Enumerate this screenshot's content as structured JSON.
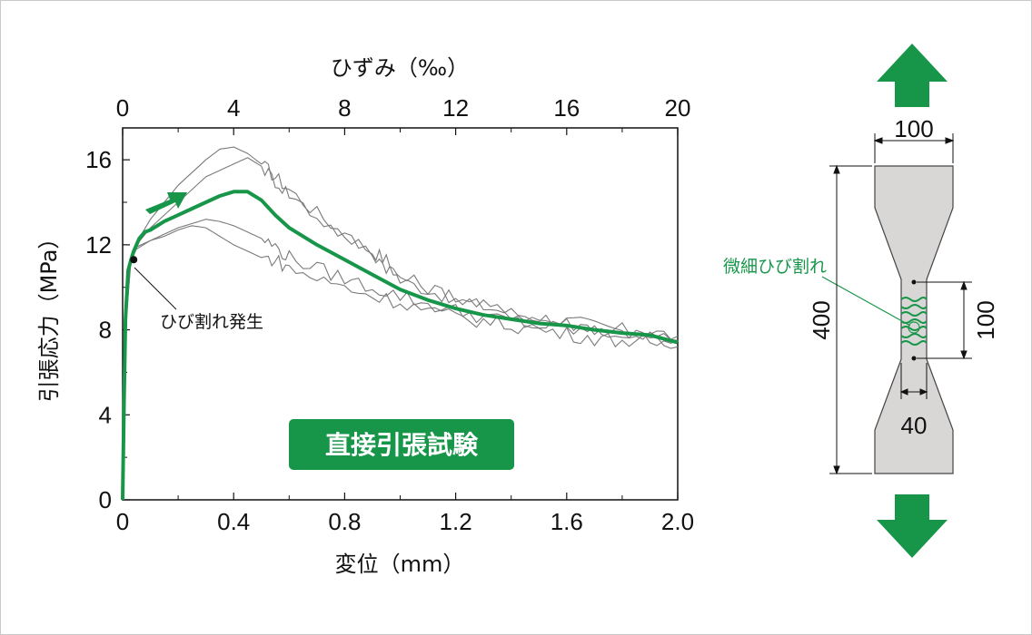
{
  "colors": {
    "main_series": "#17964a",
    "test_series": "#7a7a7a",
    "badge_bg": "#17964a",
    "specimen_fill": "#d9d6d6",
    "arrow": "#17964a"
  },
  "chart_data": {
    "type": "line",
    "title": "",
    "xlabel": "変位（mm）",
    "x2label": "ひずみ（‰）",
    "ylabel": "引張応力（MPa）",
    "xlim": [
      0,
      2.0
    ],
    "x2lim": [
      0,
      20
    ],
    "ylim": [
      0,
      17.5
    ],
    "x_ticks": [
      "0",
      "0.4",
      "0.8",
      "1.2",
      "1.6",
      "2.0"
    ],
    "x2_ticks": [
      "0",
      "4",
      "8",
      "12",
      "16",
      "20"
    ],
    "y_ticks": [
      "0",
      "4",
      "8",
      "12",
      "16"
    ],
    "grid": false,
    "series": [
      {
        "role": "average",
        "x": [
          0,
          0.005,
          0.01,
          0.02,
          0.03,
          0.04,
          0.06,
          0.08,
          0.1,
          0.15,
          0.2,
          0.25,
          0.3,
          0.35,
          0.4,
          0.45,
          0.5,
          0.55,
          0.6,
          0.7,
          0.8,
          0.9,
          1.0,
          1.1,
          1.2,
          1.3,
          1.4,
          1.5,
          1.6,
          1.7,
          1.8,
          1.9,
          2.0
        ],
        "y": [
          0,
          4.5,
          8.5,
          10.8,
          11.3,
          11.7,
          12.3,
          12.6,
          12.7,
          13.1,
          13.4,
          13.7,
          14.0,
          14.3,
          14.5,
          14.5,
          14.1,
          13.4,
          12.8,
          12.0,
          11.3,
          10.6,
          9.9,
          9.4,
          9.0,
          8.7,
          8.5,
          8.3,
          8.2,
          8.0,
          7.85,
          7.75,
          7.4
        ]
      },
      {
        "role": "test",
        "x": [
          0,
          0.01,
          0.03,
          0.05,
          0.1,
          0.2,
          0.3,
          0.35,
          0.4,
          0.45,
          0.5,
          0.55,
          0.6,
          0.7,
          0.8,
          0.9,
          0.95,
          1.0,
          1.1,
          1.2,
          1.3,
          1.4,
          1.5,
          1.6,
          1.7,
          1.8,
          1.9,
          2.0
        ],
        "y": [
          0,
          8.5,
          11.5,
          12.1,
          13.2,
          14.8,
          16.0,
          16.5,
          16.6,
          16.3,
          15.8,
          15.2,
          14.6,
          13.5,
          12.5,
          11.7,
          11.3,
          10.3,
          9.9,
          9.4,
          9.1,
          8.8,
          8.6,
          8.4,
          8.2,
          8.0,
          7.9,
          7.7
        ]
      },
      {
        "role": "test",
        "x": [
          0,
          0.01,
          0.03,
          0.05,
          0.1,
          0.2,
          0.3,
          0.4,
          0.45,
          0.5,
          0.55,
          0.6,
          0.7,
          0.8,
          0.9,
          0.95,
          1.0,
          1.1,
          1.2,
          1.3,
          1.4,
          1.5,
          1.6,
          1.7,
          1.8,
          1.9,
          2.0
        ],
        "y": [
          0,
          8.0,
          11.4,
          12.0,
          12.8,
          14.0,
          15.2,
          15.8,
          16.1,
          15.7,
          15.0,
          14.4,
          13.3,
          12.4,
          11.6,
          11.0,
          10.5,
          10.0,
          9.5,
          9.1,
          8.8,
          8.5,
          8.3,
          8.1,
          7.9,
          7.7,
          7.5
        ]
      },
      {
        "role": "test",
        "x": [
          0,
          0.01,
          0.03,
          0.05,
          0.1,
          0.15,
          0.2,
          0.25,
          0.3,
          0.35,
          0.4,
          0.45,
          0.5,
          0.55,
          0.6,
          0.7,
          0.8,
          0.9,
          1.0,
          1.1,
          1.2,
          1.3,
          1.4,
          1.5,
          1.6,
          1.7,
          1.8,
          1.9,
          2.0
        ],
        "y": [
          0,
          8.0,
          11.3,
          11.8,
          12.2,
          12.5,
          12.8,
          13.0,
          13.2,
          13.1,
          12.9,
          12.6,
          12.3,
          11.9,
          11.4,
          10.9,
          10.4,
          10.0,
          9.6,
          9.2,
          8.9,
          8.6,
          8.4,
          8.2,
          8.0,
          7.9,
          7.8,
          7.6,
          7.5
        ]
      },
      {
        "role": "test",
        "x": [
          0,
          0.01,
          0.03,
          0.05,
          0.1,
          0.15,
          0.2,
          0.25,
          0.3,
          0.35,
          0.4,
          0.45,
          0.5,
          0.55,
          0.6,
          0.7,
          0.8,
          0.9,
          1.0,
          1.1,
          1.2,
          1.3,
          1.4,
          1.5,
          1.6,
          1.7,
          1.8,
          1.9,
          2.0
        ],
        "y": [
          0,
          8.5,
          11.5,
          11.9,
          12.2,
          12.4,
          12.7,
          12.9,
          12.8,
          12.4,
          12.0,
          11.7,
          11.4,
          11.3,
          10.9,
          10.4,
          10.0,
          9.6,
          9.3,
          8.9,
          8.6,
          8.4,
          8.2,
          8.0,
          7.8,
          7.6,
          7.5,
          7.4,
          7.2
        ]
      }
    ],
    "crack_point": {
      "x": 0.04,
      "y": 11.3
    },
    "annotations": {
      "crack_onset": "ひび割れ発生",
      "test_label": "直接引張試験"
    }
  },
  "specimen": {
    "top_width": "100",
    "height": "400",
    "gauge_length": "100",
    "neck_width": "40",
    "crack_label": "微細ひび割れ"
  }
}
